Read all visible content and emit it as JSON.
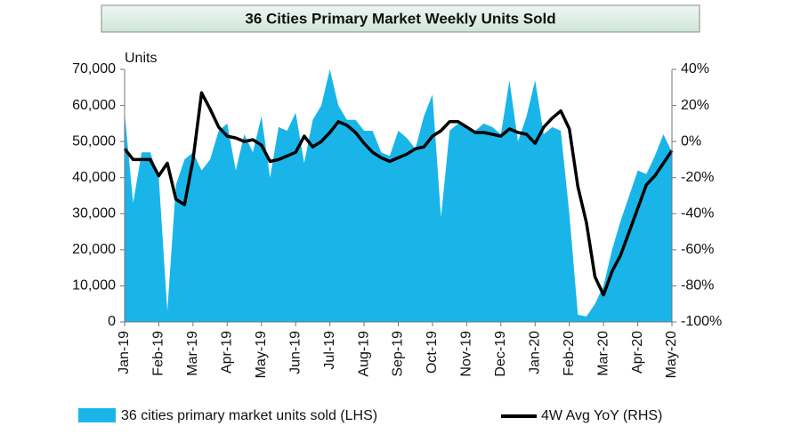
{
  "chart_data": {
    "type": "area-line",
    "title": "36 Cities Primary Market Weekly Units Sold",
    "y_axis_label": "Units",
    "categories": [
      "Jan-19",
      null,
      null,
      null,
      "Feb-19",
      null,
      null,
      null,
      "Mar-19",
      null,
      null,
      null,
      "Apr-19",
      null,
      null,
      null,
      "May-19",
      null,
      null,
      null,
      "Jun-19",
      null,
      null,
      null,
      "Jul-19",
      null,
      null,
      null,
      "Aug-19",
      null,
      null,
      null,
      "Sep-19",
      null,
      null,
      null,
      "Oct-19",
      null,
      null,
      null,
      "Nov-19",
      null,
      null,
      null,
      "Dec-19",
      null,
      null,
      null,
      "Jan-20",
      null,
      null,
      null,
      "Feb-20",
      null,
      null,
      null,
      "Mar-20",
      null,
      null,
      null,
      "Apr-20",
      null,
      null,
      null,
      "May-20"
    ],
    "series": [
      {
        "name": "36 cities primary market units sold (LHS)",
        "color": "#19b5e9",
        "axis": "y",
        "values": [
          58000,
          33000,
          47000,
          47000,
          40000,
          3000,
          38000,
          45000,
          47000,
          42000,
          45000,
          53000,
          55000,
          42000,
          52000,
          47000,
          57000,
          40000,
          54000,
          53000,
          58000,
          44000,
          56000,
          60000,
          70000,
          60000,
          56000,
          56000,
          53000,
          53000,
          47000,
          46000,
          53000,
          51000,
          48000,
          57000,
          63000,
          29000,
          53000,
          55000,
          54000,
          53000,
          55000,
          54000,
          52000,
          67000,
          50000,
          57000,
          67000,
          52000,
          54000,
          53000,
          30000,
          2000,
          1500,
          5000,
          10000,
          20000,
          28000,
          35000,
          42000,
          41000,
          46000,
          52000,
          47000
        ]
      },
      {
        "name": "4W Avg YoY (RHS)",
        "color": "#000000",
        "axis": "y2",
        "values": [
          -4,
          -10,
          -10,
          -10,
          -19,
          -12,
          -32,
          -35,
          -10,
          27,
          18,
          8,
          3,
          2,
          0,
          1,
          -2,
          -11,
          -10,
          -8,
          -6,
          3,
          -3,
          0,
          5,
          11,
          9,
          5,
          -1,
          -6,
          -9,
          -11,
          -9,
          -7,
          -4,
          -3,
          3,
          6,
          11,
          11,
          8,
          5,
          5,
          4,
          3,
          7,
          5,
          4,
          -1,
          8,
          13,
          17,
          7,
          -25,
          -45,
          -75,
          -85,
          -72,
          -63,
          -50,
          -37,
          -24,
          -19,
          -12,
          -5
        ]
      }
    ],
    "ylim": [
      0,
      70000
    ],
    "yticks": [
      0,
      {
        "value": 10000,
        "label": "10,000"
      },
      {
        "value": 20000,
        "label": "20,000"
      },
      {
        "value": 30000,
        "label": "30,000"
      },
      {
        "value": 40000,
        "label": "40,000"
      },
      {
        "value": 50000,
        "label": "50,000"
      },
      {
        "value": 60000,
        "label": "60,000"
      },
      {
        "value": 70000,
        "label": "70,000"
      }
    ],
    "y2lim": [
      -100,
      40
    ],
    "y2ticks": [
      {
        "value": -100,
        "label": "-100%"
      },
      {
        "value": -80,
        "label": "-80%"
      },
      {
        "value": -60,
        "label": "-60%"
      },
      {
        "value": -40,
        "label": "-40%"
      },
      {
        "value": -20,
        "label": "-20%"
      },
      {
        "value": 0,
        "label": "0%"
      },
      {
        "value": 20,
        "label": "20%"
      },
      {
        "value": 40,
        "label": "40%"
      }
    ],
    "grid": false,
    "legend": "bottom"
  }
}
